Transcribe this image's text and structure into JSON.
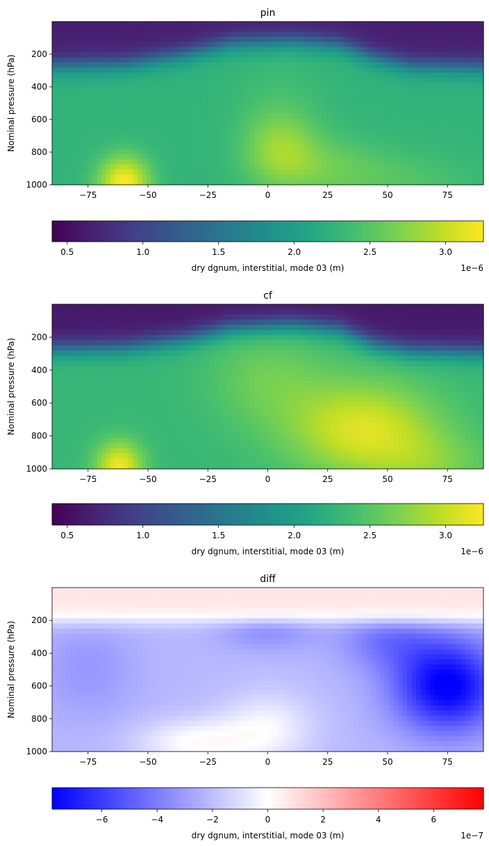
{
  "chart_data": [
    {
      "type": "heatmap",
      "title": "pin",
      "xlabel": "",
      "ylabel": "Nominal pressure (hPa)",
      "xlim": [
        -90,
        90
      ],
      "ylim": [
        1000,
        0
      ],
      "x_ticks": [
        "−75",
        "−50",
        "−25",
        "0",
        "25",
        "50",
        "75"
      ],
      "x_tick_values": [
        -75,
        -50,
        -25,
        0,
        25,
        50,
        75
      ],
      "y_ticks": [
        "200",
        "400",
        "600",
        "800",
        "1000"
      ],
      "y_tick_values": [
        200,
        400,
        600,
        800,
        1000
      ],
      "colormap": "viridis",
      "colorbar": {
        "label": "dry dgnum, interstitial, mode 03 (m)",
        "range": [
          0.4,
          3.25
        ],
        "ticks": [
          "0.5",
          "1.0",
          "1.5",
          "2.0",
          "2.5",
          "3.0"
        ],
        "tick_values": [
          0.5,
          1.0,
          1.5,
          2.0,
          2.5,
          3.0
        ],
        "offset_text": "1e−6"
      },
      "field": {
        "base": 2.25,
        "top_value": 0.65,
        "top_bottom_p": 115,
        "ridge_values": [
          [
            -90,
            270
          ],
          [
            -60,
            260
          ],
          [
            -35,
            200
          ],
          [
            -15,
            130
          ],
          [
            10,
            115
          ],
          [
            30,
            140
          ],
          [
            45,
            220
          ],
          [
            60,
            270
          ],
          [
            90,
            280
          ]
        ],
        "features": [
          {
            "lat": -60,
            "p": 990,
            "slat": 11,
            "sp": 170,
            "amp": 1.0
          },
          {
            "lat": 5,
            "p": 780,
            "slat": 16,
            "sp": 240,
            "amp": 0.5
          },
          {
            "lat": 25,
            "p": 900,
            "slat": 25,
            "sp": 200,
            "amp": 0.3
          },
          {
            "lat": 60,
            "p": 1000,
            "slat": 30,
            "sp": 200,
            "amp": 0.2
          },
          {
            "lat": 5,
            "p": 450,
            "slat": 20,
            "sp": 300,
            "amp": 0.1
          }
        ]
      }
    },
    {
      "type": "heatmap",
      "title": "cf",
      "xlabel": "",
      "ylabel": "Nominal pressure (hPa)",
      "xlim": [
        -90,
        90
      ],
      "ylim": [
        1000,
        0
      ],
      "x_ticks": [
        "−75",
        "−50",
        "−25",
        "0",
        "25",
        "50",
        "75"
      ],
      "x_tick_values": [
        -75,
        -50,
        -25,
        0,
        25,
        50,
        75
      ],
      "y_ticks": [
        "200",
        "400",
        "600",
        "800",
        "1000"
      ],
      "y_tick_values": [
        200,
        400,
        600,
        800,
        1000
      ],
      "colormap": "viridis",
      "colorbar": {
        "label": "dry dgnum, interstitial, mode 03 (m)",
        "range": [
          0.4,
          3.25
        ],
        "ticks": [
          "0.5",
          "1.0",
          "1.5",
          "2.0",
          "2.5",
          "3.0"
        ],
        "tick_values": [
          0.5,
          1.0,
          1.5,
          2.0,
          2.5,
          3.0
        ],
        "offset_text": "1e−6"
      },
      "field": {
        "base": 2.3,
        "top_value": 0.6,
        "top_bottom_p": 120,
        "ridge_values": [
          [
            -90,
            270
          ],
          [
            -60,
            260
          ],
          [
            -35,
            210
          ],
          [
            -15,
            140
          ],
          [
            10,
            120
          ],
          [
            30,
            150
          ],
          [
            45,
            240
          ],
          [
            60,
            280
          ],
          [
            90,
            290
          ]
        ],
        "features": [
          {
            "lat": -62,
            "p": 990,
            "slat": 10,
            "sp": 160,
            "amp": 0.9
          },
          {
            "lat": 40,
            "p": 760,
            "slat": 32,
            "sp": 300,
            "amp": 0.8
          },
          {
            "lat": 70,
            "p": 980,
            "slat": 25,
            "sp": 200,
            "amp": 0.3
          },
          {
            "lat": 0,
            "p": 450,
            "slat": 25,
            "sp": 300,
            "amp": 0.3
          }
        ]
      }
    },
    {
      "type": "heatmap",
      "title": "diff",
      "xlabel": "",
      "ylabel": "Nominal pressure (hPa)",
      "xlim": [
        -90,
        90
      ],
      "ylim": [
        1000,
        0
      ],
      "x_ticks": [
        "−75",
        "−50",
        "−25",
        "0",
        "25",
        "50",
        "75"
      ],
      "x_tick_values": [
        -75,
        -50,
        -25,
        0,
        25,
        50,
        75
      ],
      "y_ticks": [
        "200",
        "400",
        "600",
        "800",
        "1000"
      ],
      "y_tick_values": [
        200,
        400,
        600,
        800,
        1000
      ],
      "colormap": "bwr",
      "colorbar": {
        "label": "dry dgnum, interstitial, mode 03 (m)",
        "range": [
          -7.8,
          7.8
        ],
        "ticks": [
          "−6",
          "−4",
          "−2",
          "0",
          "2",
          "4",
          "6"
        ],
        "tick_values": [
          -6,
          -4,
          -2,
          0,
          2,
          4,
          6
        ],
        "offset_text": "1e−7"
      },
      "field": {
        "top_value": 0.8,
        "top_bottom_p": 130,
        "base_negative": -2.2,
        "features": [
          {
            "lat": 75,
            "p": 600,
            "slat": 22,
            "sp": 280,
            "amp": -5.8
          },
          {
            "lat": 50,
            "p": 300,
            "slat": 20,
            "sp": 200,
            "amp": -2.0
          },
          {
            "lat": 0,
            "p": 250,
            "slat": 20,
            "sp": 120,
            "amp": -1.5
          },
          {
            "lat": -30,
            "p": 950,
            "slat": 25,
            "sp": 150,
            "amp": 2.2
          },
          {
            "lat": 0,
            "p": 850,
            "slat": 20,
            "sp": 220,
            "amp": 1.8
          },
          {
            "lat": -75,
            "p": 500,
            "slat": 20,
            "sp": 300,
            "amp": -1.0
          }
        ]
      }
    }
  ]
}
